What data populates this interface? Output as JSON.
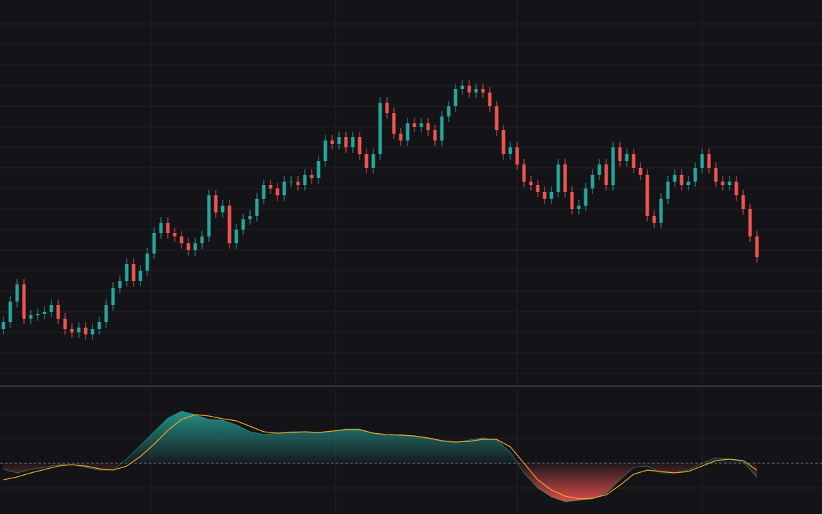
{
  "chart_data": [
    {
      "type": "candlestick",
      "up_color": "#26a69a",
      "down_color": "#ef5350",
      "xlim": [
        -0.5,
        119.5
      ],
      "xticks": [
        21.5,
        48.5,
        75,
        102
      ],
      "ylim": [
        0,
        560
      ],
      "yticks": [
        15,
        45,
        75,
        105,
        135,
        165,
        195,
        225,
        255,
        285,
        315,
        345,
        375,
        405,
        435,
        465,
        495,
        525
      ],
      "grid": true,
      "open": [
        80,
        90,
        120,
        145,
        95,
        100,
        102,
        105,
        115,
        95,
        80,
        75,
        82,
        72,
        80,
        90,
        115,
        140,
        150,
        175,
        150,
        165,
        190,
        220,
        235,
        220,
        215,
        205,
        195,
        205,
        215,
        275,
        250,
        260,
        205,
        225,
        240,
        245,
        270,
        290,
        285,
        275,
        295,
        295,
        290,
        305,
        300,
        325,
        355,
        350,
        360,
        345,
        360,
        335,
        315,
        335,
        410,
        395,
        365,
        355,
        380,
        375,
        380,
        370,
        355,
        390,
        405,
        430,
        435,
        425,
        430,
        425,
        405,
        370,
        335,
        345,
        320,
        295,
        290,
        280,
        270,
        280,
        320,
        280,
        255,
        260,
        285,
        305,
        320,
        290,
        345,
        325,
        335,
        315,
        305,
        245,
        235,
        270,
        295,
        305,
        290,
        295,
        315,
        335,
        315,
        295,
        290,
        295,
        275,
        255,
        215
      ],
      "high": [
        98,
        128,
        153,
        153,
        108,
        110,
        113,
        123,
        123,
        103,
        88,
        90,
        90,
        88,
        98,
        123,
        148,
        158,
        183,
        183,
        173,
        198,
        228,
        243,
        243,
        228,
        223,
        213,
        213,
        223,
        283,
        283,
        268,
        268,
        233,
        248,
        253,
        278,
        298,
        298,
        293,
        303,
        303,
        303,
        313,
        313,
        333,
        363,
        363,
        368,
        368,
        368,
        368,
        343,
        343,
        418,
        418,
        403,
        373,
        388,
        388,
        388,
        388,
        378,
        398,
        413,
        438,
        443,
        443,
        438,
        438,
        433,
        413,
        378,
        353,
        353,
        328,
        303,
        298,
        288,
        288,
        328,
        328,
        288,
        268,
        293,
        313,
        328,
        328,
        353,
        353,
        343,
        343,
        323,
        313,
        253,
        278,
        303,
        313,
        313,
        303,
        323,
        343,
        343,
        323,
        303,
        303,
        303,
        283,
        263,
        223
      ],
      "low": [
        72,
        82,
        112,
        87,
        87,
        92,
        94,
        97,
        87,
        72,
        67,
        67,
        64,
        64,
        72,
        82,
        107,
        132,
        142,
        142,
        142,
        157,
        182,
        212,
        212,
        207,
        197,
        187,
        187,
        197,
        207,
        242,
        242,
        197,
        197,
        217,
        232,
        237,
        262,
        277,
        267,
        267,
        287,
        282,
        282,
        292,
        292,
        317,
        342,
        342,
        337,
        337,
        327,
        307,
        307,
        327,
        387,
        357,
        347,
        347,
        367,
        367,
        362,
        347,
        347,
        382,
        397,
        422,
        417,
        417,
        417,
        397,
        362,
        327,
        327,
        312,
        287,
        282,
        272,
        262,
        262,
        272,
        272,
        247,
        247,
        252,
        277,
        297,
        282,
        282,
        317,
        317,
        307,
        297,
        237,
        227,
        227,
        262,
        287,
        282,
        282,
        287,
        307,
        307,
        287,
        282,
        282,
        267,
        247,
        207,
        177
      ],
      "close": [
        90,
        120,
        145,
        95,
        100,
        102,
        105,
        115,
        95,
        80,
        75,
        82,
        72,
        80,
        90,
        115,
        140,
        150,
        175,
        150,
        165,
        190,
        220,
        235,
        220,
        215,
        205,
        195,
        205,
        215,
        275,
        250,
        260,
        205,
        225,
        240,
        245,
        270,
        290,
        285,
        275,
        295,
        295,
        290,
        305,
        300,
        325,
        355,
        350,
        360,
        345,
        360,
        335,
        315,
        335,
        410,
        395,
        365,
        355,
        380,
        375,
        380,
        370,
        355,
        390,
        405,
        430,
        435,
        425,
        430,
        425,
        405,
        370,
        335,
        345,
        320,
        295,
        290,
        280,
        270,
        280,
        320,
        280,
        255,
        260,
        285,
        305,
        320,
        290,
        345,
        325,
        335,
        315,
        305,
        245,
        235,
        270,
        295,
        305,
        290,
        295,
        315,
        335,
        315,
        295,
        290,
        295,
        275,
        255,
        215,
        185
      ]
    },
    {
      "type": "line",
      "ylim": [
        -74,
        111
      ],
      "yticks": [
        -36,
        0,
        36,
        71
      ],
      "zero_line": 0,
      "above_color": "#26a69a",
      "below_color": "#ef5350",
      "series": [
        {
          "color": "#26a69a",
          "values": [
            -9,
            -14,
            -9,
            -6,
            -2,
            -2,
            -6,
            -10,
            -10,
            6,
            26,
            46,
            66,
            76,
            71,
            64,
            63,
            56,
            46,
            42,
            44,
            46,
            46,
            44,
            47,
            50,
            50,
            44,
            40,
            42,
            39,
            36,
            32,
            30,
            34,
            37,
            34,
            16,
            -14,
            -36,
            -49,
            -56,
            -54,
            -52,
            -44,
            -24,
            -6,
            -4,
            -14,
            -14,
            -10,
            0,
            8,
            6,
            2,
            -20
          ]
        },
        {
          "color": "#f5a623",
          "values": [
            -24,
            -20,
            -14,
            -9,
            -4,
            -2,
            -4,
            -8,
            -10,
            -4,
            10,
            28,
            48,
            64,
            71,
            69,
            65,
            62,
            54,
            46,
            44,
            45,
            46,
            45,
            47,
            49,
            49,
            44,
            42,
            41,
            40,
            37,
            33,
            31,
            32,
            35,
            35,
            24,
            0,
            -24,
            -39,
            -48,
            -52,
            -51,
            -46,
            -32,
            -16,
            -10,
            -12,
            -14,
            -12,
            -4,
            4,
            6,
            4,
            -10
          ]
        }
      ]
    }
  ]
}
